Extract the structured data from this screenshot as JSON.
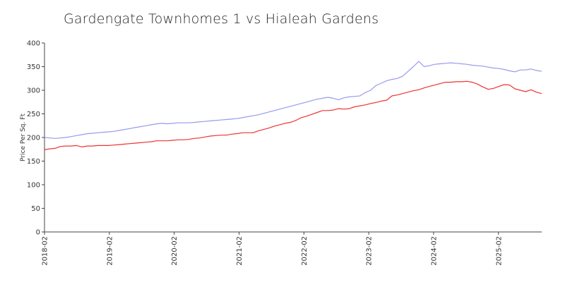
{
  "chart_data": {
    "type": "line",
    "title": "Gardengate Townhomes 1 vs Hialeah Gardens",
    "xlabel": "",
    "ylabel": "Price Per Sq. Ft",
    "ylim": [
      0,
      400
    ],
    "yticks": [
      0,
      50,
      100,
      150,
      200,
      250,
      300,
      350,
      400
    ],
    "xticks": [
      "2018-02",
      "2019-02",
      "2020-02",
      "2021-02",
      "2022-02",
      "2023-02",
      "2024-02",
      "2025-02"
    ],
    "x_start": "2018-02",
    "x_end": "2025-10",
    "grid": false,
    "legend": "none",
    "series": [
      {
        "color": "#9999ee",
        "values": [
          200,
          199,
          198,
          199,
          200,
          202,
          204,
          206,
          208,
          209,
          210,
          211,
          212,
          213,
          215,
          217,
          219,
          221,
          223,
          225,
          227,
          229,
          230,
          229,
          230,
          231,
          231,
          231,
          232,
          233,
          234,
          235,
          236,
          237,
          238,
          239,
          240,
          242,
          244,
          246,
          248,
          251,
          254,
          257,
          260,
          263,
          266,
          269,
          272,
          275,
          278,
          281,
          283,
          285,
          283,
          280,
          284,
          286,
          287,
          288,
          295,
          300,
          310,
          315,
          320,
          323,
          325,
          330,
          340,
          350,
          361,
          350,
          352,
          355,
          356,
          357,
          358,
          357,
          356,
          355,
          353,
          352,
          351,
          349,
          347,
          346,
          344,
          341,
          339,
          343,
          343,
          345,
          342,
          340
        ]
      },
      {
        "color": "#ee3333",
        "values": [
          174,
          176,
          177,
          181,
          182,
          182,
          183,
          180,
          182,
          182,
          183,
          183,
          183,
          184,
          185,
          186,
          187,
          188,
          189,
          190,
          191,
          193,
          193,
          193,
          194,
          195,
          195,
          196,
          198,
          199,
          201,
          203,
          204,
          205,
          205,
          207,
          208,
          210,
          210,
          210,
          214,
          217,
          220,
          224,
          227,
          230,
          232,
          236,
          242,
          245,
          249,
          253,
          257,
          257,
          258,
          261,
          260,
          261,
          265,
          267,
          269,
          272,
          274,
          277,
          279,
          288,
          290,
          293,
          296,
          299,
          301,
          305,
          308,
          311,
          314,
          317,
          317,
          318,
          318,
          319,
          317,
          313,
          307,
          302,
          304,
          308,
          312,
          311,
          303,
          300,
          297,
          301,
          296,
          293
        ]
      }
    ]
  }
}
